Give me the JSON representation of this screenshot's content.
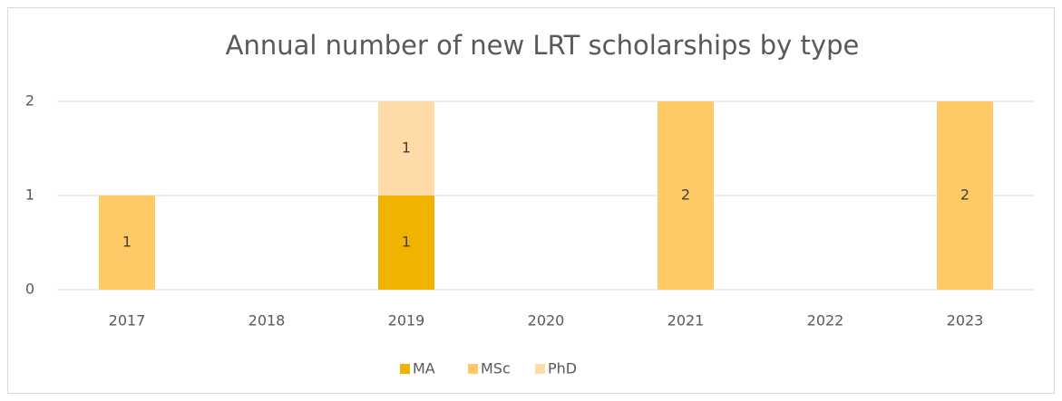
{
  "chart_data": {
    "type": "stacked_bar",
    "title": "Annual number of new LRT scholarships by type",
    "categories": [
      "2017",
      "2018",
      "2019",
      "2020",
      "2021",
      "2022",
      "2023"
    ],
    "series": [
      {
        "name": "MA",
        "color": "#f0b400",
        "values": [
          0,
          0,
          1,
          0,
          0,
          0,
          0
        ]
      },
      {
        "name": "MSc",
        "color": "#ffc965",
        "values": [
          1,
          0,
          0,
          0,
          2,
          0,
          2
        ]
      },
      {
        "name": "PhD",
        "color": "#ffdba8",
        "values": [
          0,
          0,
          1,
          0,
          0,
          0,
          0
        ]
      }
    ],
    "ylim": [
      0,
      2
    ],
    "yticks": [
      0,
      1,
      2
    ],
    "grid": true,
    "legend": "bottom"
  }
}
